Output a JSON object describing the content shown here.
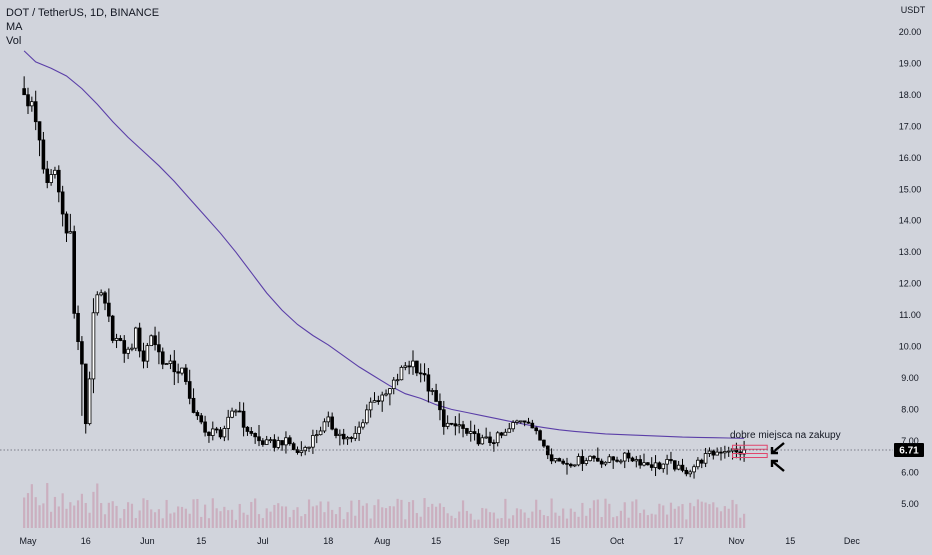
{
  "header": {
    "symbol_line": "DOT / TetherUS, 1D, BINANCE",
    "indicator_ma": "MA",
    "indicator_vol": "Vol"
  },
  "colors": {
    "background": "#d1d4dc",
    "candle": "#000000",
    "ma_line": "#5b3fa8",
    "volume": "#c8a3b6",
    "last_price_bg": "#000000",
    "annotation_box": "#e0436b",
    "dotted_line": "#5d606b"
  },
  "chart_data": {
    "type": "candlestick",
    "currency_label": "USDT",
    "y_ticks": [
      "20.00",
      "19.00",
      "18.00",
      "17.00",
      "16.00",
      "15.00",
      "14.00",
      "13.00",
      "12.00",
      "11.00",
      "10.00",
      "9.00",
      "8.00",
      "7.00",
      "6.00",
      "5.00"
    ],
    "ylim": [
      4.55,
      20.85
    ],
    "x_ticks": [
      {
        "label": "May",
        "day": 0
      },
      {
        "label": "16",
        "day": 15
      },
      {
        "label": "Jun",
        "day": 31
      },
      {
        "label": "15",
        "day": 45
      },
      {
        "label": "Jul",
        "day": 61
      },
      {
        "label": "18",
        "day": 78
      },
      {
        "label": "Aug",
        "day": 92
      },
      {
        "label": "15",
        "day": 106
      },
      {
        "label": "Sep",
        "day": 123
      },
      {
        "label": "15",
        "day": 137
      },
      {
        "label": "Oct",
        "day": 153
      },
      {
        "label": "17",
        "day": 169
      },
      {
        "label": "Nov",
        "day": 184
      },
      {
        "label": "15",
        "day": 198
      },
      {
        "label": "Dec",
        "day": 214
      }
    ],
    "last_price": 6.71,
    "last_price_label": "6.71",
    "annotation": {
      "text": "dobre miejsca na zakupy",
      "zone_top": 6.86,
      "zone_bottom": 6.47
    },
    "close_path": [
      [
        -1,
        18.2
      ],
      [
        1,
        17.6
      ],
      [
        3,
        16.6
      ],
      [
        5,
        15.0
      ],
      [
        7,
        15.6
      ],
      [
        9,
        14.2
      ],
      [
        11,
        13.6
      ],
      [
        12,
        11.0
      ],
      [
        13,
        10.2
      ],
      [
        14,
        9.3
      ],
      [
        15,
        7.6
      ],
      [
        16,
        9.0
      ],
      [
        17,
        11.2
      ],
      [
        19,
        11.6
      ],
      [
        20,
        11.2
      ],
      [
        22,
        10.4
      ],
      [
        24,
        10.0
      ],
      [
        26,
        9.8
      ],
      [
        28,
        10.4
      ],
      [
        30,
        9.6
      ],
      [
        32,
        10.4
      ],
      [
        34,
        9.8
      ],
      [
        36,
        9.4
      ],
      [
        38,
        9.3
      ],
      [
        40,
        9.2
      ],
      [
        42,
        8.3
      ],
      [
        44,
        7.8
      ],
      [
        46,
        7.2
      ],
      [
        48,
        7.4
      ],
      [
        50,
        7.0
      ],
      [
        52,
        7.8
      ],
      [
        54,
        8.1
      ],
      [
        56,
        7.5
      ],
      [
        58,
        7.2
      ],
      [
        60,
        7.0
      ],
      [
        62,
        6.9
      ],
      [
        64,
        6.9
      ],
      [
        66,
        7.0
      ],
      [
        68,
        6.9
      ],
      [
        70,
        6.6
      ],
      [
        72,
        6.8
      ],
      [
        74,
        7.1
      ],
      [
        76,
        7.4
      ],
      [
        78,
        7.6
      ],
      [
        80,
        7.3
      ],
      [
        82,
        7.1
      ],
      [
        84,
        7.0
      ],
      [
        86,
        7.4
      ],
      [
        88,
        8.0
      ],
      [
        90,
        8.4
      ],
      [
        92,
        8.3
      ],
      [
        94,
        8.6
      ],
      [
        96,
        9.0
      ],
      [
        98,
        9.4
      ],
      [
        100,
        9.5
      ],
      [
        102,
        9.2
      ],
      [
        104,
        8.7
      ],
      [
        106,
        8.2
      ],
      [
        108,
        7.6
      ],
      [
        110,
        7.4
      ],
      [
        112,
        7.5
      ],
      [
        114,
        7.2
      ],
      [
        116,
        7.1
      ],
      [
        118,
        7.0
      ],
      [
        120,
        7.0
      ],
      [
        122,
        7.1
      ],
      [
        124,
        7.2
      ],
      [
        126,
        7.5
      ],
      [
        128,
        7.7
      ],
      [
        130,
        7.7
      ],
      [
        132,
        7.2
      ],
      [
        134,
        6.9
      ],
      [
        136,
        6.5
      ],
      [
        138,
        6.35
      ],
      [
        140,
        6.3
      ],
      [
        142,
        6.35
      ],
      [
        144,
        6.4
      ],
      [
        146,
        6.5
      ],
      [
        148,
        6.4
      ],
      [
        150,
        6.35
      ],
      [
        152,
        6.4
      ],
      [
        154,
        6.45
      ],
      [
        156,
        6.5
      ],
      [
        158,
        6.4
      ],
      [
        160,
        6.3
      ],
      [
        162,
        6.25
      ],
      [
        164,
        6.2
      ],
      [
        166,
        6.3
      ],
      [
        168,
        6.2
      ],
      [
        170,
        6.0
      ],
      [
        172,
        6.1
      ],
      [
        174,
        6.3
      ],
      [
        176,
        6.5
      ],
      [
        178,
        6.6
      ],
      [
        180,
        6.7
      ],
      [
        182,
        6.75
      ],
      [
        184,
        6.6
      ],
      [
        186,
        6.71
      ]
    ],
    "ma_path": [
      [
        -1,
        19.4
      ],
      [
        2,
        19.05
      ],
      [
        6,
        18.85
      ],
      [
        10,
        18.6
      ],
      [
        14,
        18.2
      ],
      [
        18,
        17.7
      ],
      [
        22,
        17.15
      ],
      [
        26,
        16.65
      ],
      [
        30,
        16.2
      ],
      [
        34,
        15.75
      ],
      [
        38,
        15.25
      ],
      [
        42,
        14.7
      ],
      [
        46,
        14.15
      ],
      [
        50,
        13.6
      ],
      [
        54,
        13.0
      ],
      [
        58,
        12.35
      ],
      [
        62,
        11.7
      ],
      [
        66,
        11.15
      ],
      [
        70,
        10.7
      ],
      [
        74,
        10.35
      ],
      [
        78,
        10.05
      ],
      [
        82,
        9.7
      ],
      [
        86,
        9.35
      ],
      [
        90,
        9.05
      ],
      [
        94,
        8.75
      ],
      [
        98,
        8.5
      ],
      [
        102,
        8.35
      ],
      [
        106,
        8.15
      ],
      [
        110,
        8.0
      ],
      [
        114,
        7.9
      ],
      [
        118,
        7.8
      ],
      [
        122,
        7.7
      ],
      [
        126,
        7.6
      ],
      [
        130,
        7.5
      ],
      [
        134,
        7.42
      ],
      [
        138,
        7.35
      ],
      [
        142,
        7.3
      ],
      [
        146,
        7.26
      ],
      [
        150,
        7.22
      ],
      [
        154,
        7.2
      ],
      [
        158,
        7.18
      ],
      [
        162,
        7.16
      ],
      [
        166,
        7.14
      ],
      [
        170,
        7.12
      ],
      [
        174,
        7.11
      ],
      [
        178,
        7.1
      ],
      [
        182,
        7.09
      ],
      [
        186,
        7.08
      ]
    ]
  }
}
